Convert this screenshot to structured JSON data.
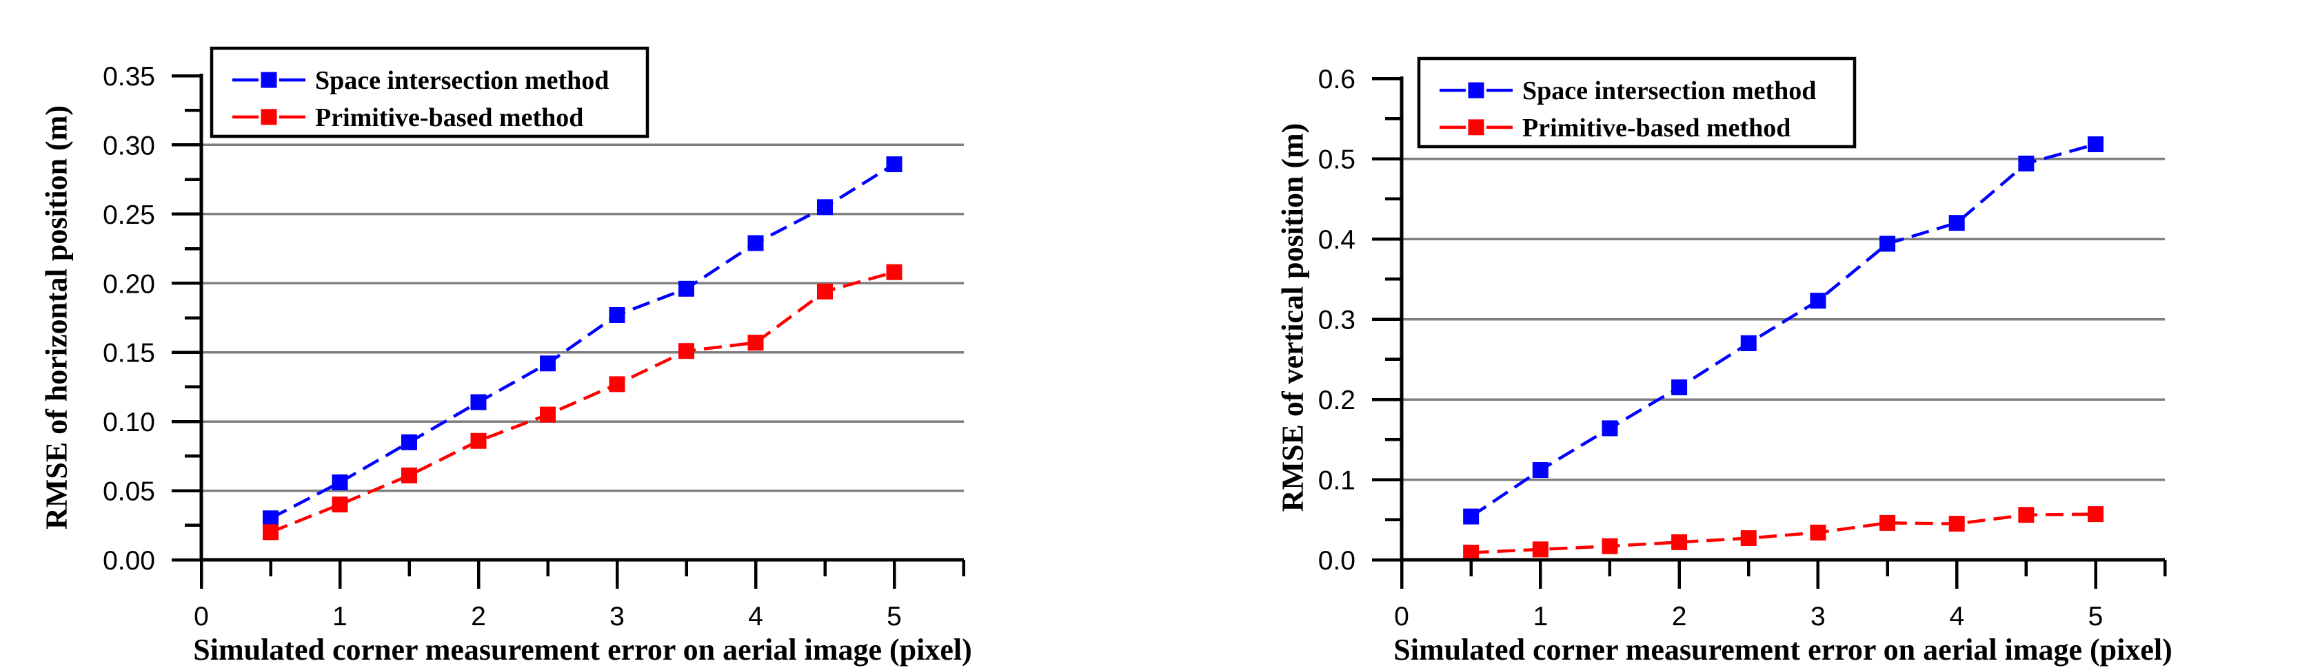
{
  "figure": {
    "background": "#ffffff",
    "description_left_panel": "RMSE of horizontal position vs simulated corner measurement error",
    "description_right_panel": "RMSE of vertical position vs simulated corner measurement error"
  },
  "colors": {
    "series_blue": "#0000ff",
    "series_red": "#ff0000",
    "gridline": "#7f7f7f",
    "axis": "#000000",
    "legend_border": "#000000",
    "background": "#ffffff",
    "text": "#000000"
  },
  "chart_data": [
    {
      "type": "line",
      "title": "",
      "xlabel": "Simulated corner measurement error on aerial image (pixel)",
      "ylabel": "RMSE of horizontal position (m)",
      "x": [
        0.5,
        1.0,
        1.5,
        2.0,
        2.5,
        3.0,
        3.5,
        4.0,
        4.5,
        5.0
      ],
      "series": [
        {
          "name": "Space intersection method",
          "color": "#0000ff",
          "marker": "square",
          "linestyle": "dashed",
          "values": [
            0.03,
            0.056,
            0.085,
            0.114,
            0.142,
            0.177,
            0.196,
            0.229,
            0.255,
            0.286
          ]
        },
        {
          "name": "Primitive-based method",
          "color": "#ff0000",
          "marker": "square",
          "linestyle": "dashed",
          "values": [
            0.02,
            0.04,
            0.061,
            0.086,
            0.105,
            0.127,
            0.151,
            0.157,
            0.194,
            0.208
          ]
        }
      ],
      "xlim": [
        0,
        5.5
      ],
      "ylim": [
        0,
        0.35
      ],
      "x_ticks": [
        0,
        1,
        2,
        3,
        4,
        5
      ],
      "x_tick_labels": [
        "0",
        "1",
        "2",
        "3",
        "4",
        "5"
      ],
      "x_minor_ticks": [
        0.5,
        1.5,
        2.5,
        3.5,
        4.5,
        5.5
      ],
      "y_ticks": [
        0.0,
        0.05,
        0.1,
        0.15,
        0.2,
        0.25,
        0.3,
        0.35
      ],
      "y_tick_labels": [
        "0.00",
        "0.05",
        "0.10",
        "0.15",
        "0.20",
        "0.25",
        "0.30",
        "0.35"
      ],
      "y_minor_ticks": [
        0.025,
        0.075,
        0.125,
        0.175,
        0.225,
        0.275,
        0.325
      ],
      "gridline_values": [
        0.05,
        0.1,
        0.15,
        0.2,
        0.25,
        0.3
      ],
      "grid": true,
      "legend_position": "top-left",
      "legend_labels": [
        "Space intersection method",
        "Primitive-based method"
      ]
    },
    {
      "type": "line",
      "title": "",
      "xlabel": "Simulated corner measurement error on aerial image (pixel)",
      "ylabel": "RMSE of vertical position (m)",
      "x": [
        0.5,
        1.0,
        1.5,
        2.0,
        2.5,
        3.0,
        3.5,
        4.0,
        4.5,
        5.0
      ],
      "series": [
        {
          "name": "Space intersection method",
          "color": "#0000ff",
          "marker": "square",
          "linestyle": "dashed",
          "values": [
            0.054,
            0.112,
            0.164,
            0.215,
            0.27,
            0.323,
            0.394,
            0.42,
            0.494,
            0.518
          ]
        },
        {
          "name": "Primitive-based method",
          "color": "#ff0000",
          "marker": "square",
          "linestyle": "dashed",
          "values": [
            0.009,
            0.013,
            0.017,
            0.022,
            0.027,
            0.034,
            0.046,
            0.045,
            0.056,
            0.057
          ]
        }
      ],
      "xlim": [
        0,
        5.5
      ],
      "ylim": [
        0,
        0.6
      ],
      "x_ticks": [
        0,
        1,
        2,
        3,
        4,
        5
      ],
      "x_tick_labels": [
        "0",
        "1",
        "2",
        "3",
        "4",
        "5"
      ],
      "x_minor_ticks": [
        0.5,
        1.5,
        2.5,
        3.5,
        4.5,
        5.5
      ],
      "y_ticks": [
        0.0,
        0.1,
        0.2,
        0.3,
        0.4,
        0.5,
        0.6
      ],
      "y_tick_labels": [
        "0.0",
        "0.1",
        "0.2",
        "0.3",
        "0.4",
        "0.5",
        "0.6"
      ],
      "y_minor_ticks": [
        0.05,
        0.15,
        0.25,
        0.35,
        0.45,
        0.55
      ],
      "gridline_values": [
        0.1,
        0.2,
        0.3,
        0.4,
        0.5
      ],
      "grid": true,
      "legend_position": "top-left",
      "legend_labels": [
        "Space intersection method",
        "Primitive-based method"
      ]
    }
  ]
}
